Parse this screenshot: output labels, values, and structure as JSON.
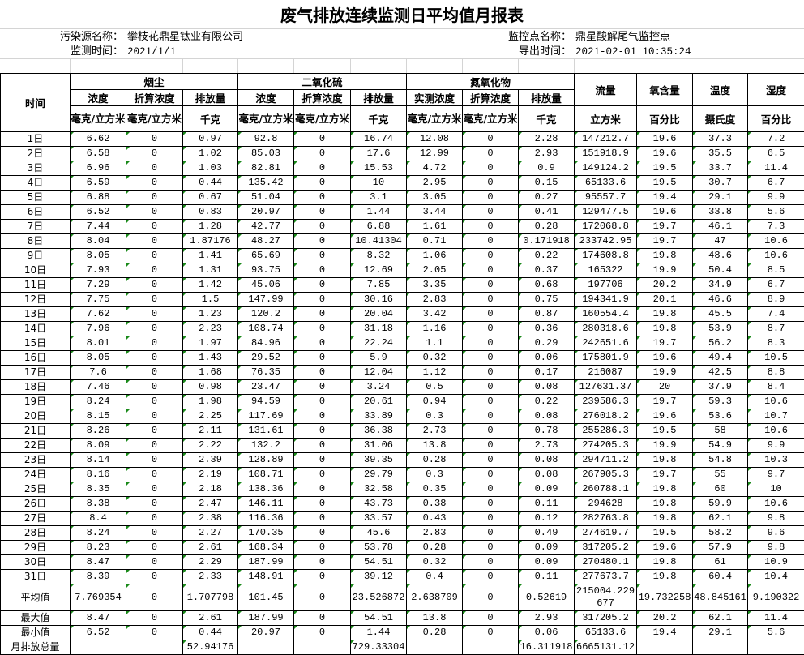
{
  "title": "废气排放连续监测日平均值月报表",
  "info": {
    "source_label": "污染源名称：",
    "source_value": "攀枝花鼎星钛业有限公司",
    "point_label": "监控点名称：",
    "point_value": "鼎星酸解尾气监控点",
    "time_label": "监测时间：",
    "time_value": "2021/1/1",
    "export_label": "导出时间：",
    "export_value": "2021-02-01 10:35:24"
  },
  "header": {
    "time": "时间",
    "groups": {
      "dust": "烟尘",
      "so2": "二氧化硫",
      "nox": "氮氧化物"
    },
    "flow": "流量",
    "oxygen": "氧含量",
    "temp": "温度",
    "humidity": "湿度",
    "sub": {
      "conc": "浓度",
      "conv": "折算浓度",
      "emis": "排放量",
      "measured": "实测浓度"
    },
    "units": {
      "mg": "毫克/立方米",
      "kg": "千克",
      "m3": "立方米",
      "pct": "百分比",
      "celsius": "摄氏度"
    }
  },
  "rows": [
    [
      "1日",
      "6.62",
      "0",
      "0.97",
      "92.8",
      "0",
      "16.74",
      "12.08",
      "0",
      "2.28",
      "147212.7",
      "19.6",
      "37.3",
      "7.2"
    ],
    [
      "2日",
      "6.58",
      "0",
      "1.02",
      "85.03",
      "0",
      "17.6",
      "12.99",
      "0",
      "2.93",
      "151918.9",
      "19.6",
      "35.5",
      "6.5"
    ],
    [
      "3日",
      "6.96",
      "0",
      "1.03",
      "82.81",
      "0",
      "15.53",
      "4.72",
      "0",
      "0.9",
      "149124.2",
      "19.5",
      "33.7",
      "11.4"
    ],
    [
      "4日",
      "6.59",
      "0",
      "0.44",
      "135.42",
      "0",
      "10",
      "2.95",
      "0",
      "0.15",
      "65133.6",
      "19.5",
      "30.7",
      "6.7"
    ],
    [
      "5日",
      "6.88",
      "0",
      "0.67",
      "51.04",
      "0",
      "3.1",
      "3.05",
      "0",
      "0.27",
      "95557.7",
      "19.4",
      "29.1",
      "9.9"
    ],
    [
      "6日",
      "6.52",
      "0",
      "0.83",
      "20.97",
      "0",
      "1.44",
      "3.44",
      "0",
      "0.41",
      "129477.5",
      "19.6",
      "33.8",
      "5.6"
    ],
    [
      "7日",
      "7.44",
      "0",
      "1.28",
      "42.77",
      "0",
      "6.88",
      "1.61",
      "0",
      "0.28",
      "172068.8",
      "19.7",
      "46.1",
      "7.3"
    ],
    [
      "8日",
      "8.04",
      "0",
      "1.87176",
      "48.27",
      "0",
      "10.41304",
      "0.71",
      "0",
      "0.171918",
      "233742.95",
      "19.7",
      "47",
      "10.6"
    ],
    [
      "9日",
      "8.05",
      "0",
      "1.41",
      "65.69",
      "0",
      "8.32",
      "1.06",
      "0",
      "0.22",
      "174608.8",
      "19.8",
      "48.6",
      "10.6"
    ],
    [
      "10日",
      "7.93",
      "0",
      "1.31",
      "93.75",
      "0",
      "12.69",
      "2.05",
      "0",
      "0.37",
      "165322",
      "19.9",
      "50.4",
      "8.5"
    ],
    [
      "11日",
      "7.29",
      "0",
      "1.42",
      "45.06",
      "0",
      "7.85",
      "3.35",
      "0",
      "0.68",
      "197706",
      "20.2",
      "34.9",
      "6.7"
    ],
    [
      "12日",
      "7.75",
      "0",
      "1.5",
      "147.99",
      "0",
      "30.16",
      "2.83",
      "0",
      "0.75",
      "194341.9",
      "20.1",
      "46.6",
      "8.9"
    ],
    [
      "13日",
      "7.62",
      "0",
      "1.23",
      "120.2",
      "0",
      "20.04",
      "3.42",
      "0",
      "0.87",
      "160554.4",
      "19.8",
      "45.5",
      "7.4"
    ],
    [
      "14日",
      "7.96",
      "0",
      "2.23",
      "108.74",
      "0",
      "31.18",
      "1.16",
      "0",
      "0.36",
      "280318.6",
      "19.8",
      "53.9",
      "8.7"
    ],
    [
      "15日",
      "8.01",
      "0",
      "1.97",
      "84.96",
      "0",
      "22.24",
      "1.1",
      "0",
      "0.29",
      "242651.6",
      "19.7",
      "56.2",
      "8.3"
    ],
    [
      "16日",
      "8.05",
      "0",
      "1.43",
      "29.52",
      "0",
      "5.9",
      "0.32",
      "0",
      "0.06",
      "175801.9",
      "19.6",
      "49.4",
      "10.5"
    ],
    [
      "17日",
      "7.6",
      "0",
      "1.68",
      "76.35",
      "0",
      "12.04",
      "1.12",
      "0",
      "0.17",
      "216087",
      "19.9",
      "42.5",
      "8.8"
    ],
    [
      "18日",
      "7.46",
      "0",
      "0.98",
      "23.47",
      "0",
      "3.24",
      "0.5",
      "0",
      "0.08",
      "127631.37",
      "20",
      "37.9",
      "8.4"
    ],
    [
      "19日",
      "8.24",
      "0",
      "1.98",
      "94.59",
      "0",
      "20.61",
      "0.94",
      "0",
      "0.22",
      "239586.3",
      "19.7",
      "59.3",
      "10.6"
    ],
    [
      "20日",
      "8.15",
      "0",
      "2.25",
      "117.69",
      "0",
      "33.89",
      "0.3",
      "0",
      "0.08",
      "276018.2",
      "19.6",
      "53.6",
      "10.7"
    ],
    [
      "21日",
      "8.26",
      "0",
      "2.11",
      "131.61",
      "0",
      "36.38",
      "2.73",
      "0",
      "0.78",
      "255286.3",
      "19.5",
      "58",
      "10.6"
    ],
    [
      "22日",
      "8.09",
      "0",
      "2.22",
      "132.2",
      "0",
      "31.06",
      "13.8",
      "0",
      "2.73",
      "274205.3",
      "19.9",
      "54.9",
      "9.9"
    ],
    [
      "23日",
      "8.14",
      "0",
      "2.39",
      "128.89",
      "0",
      "39.35",
      "0.28",
      "0",
      "0.08",
      "294711.2",
      "19.8",
      "54.8",
      "10.3"
    ],
    [
      "24日",
      "8.16",
      "0",
      "2.19",
      "108.71",
      "0",
      "29.79",
      "0.3",
      "0",
      "0.08",
      "267905.3",
      "19.7",
      "55",
      "9.7"
    ],
    [
      "25日",
      "8.35",
      "0",
      "2.18",
      "138.36",
      "0",
      "32.58",
      "0.35",
      "0",
      "0.09",
      "260788.1",
      "19.8",
      "60",
      "10"
    ],
    [
      "26日",
      "8.38",
      "0",
      "2.47",
      "146.11",
      "0",
      "43.73",
      "0.38",
      "0",
      "0.11",
      "294628",
      "19.8",
      "59.9",
      "10.6"
    ],
    [
      "27日",
      "8.4",
      "0",
      "2.38",
      "116.36",
      "0",
      "33.57",
      "0.43",
      "0",
      "0.12",
      "282763.8",
      "19.8",
      "62.1",
      "9.8"
    ],
    [
      "28日",
      "8.24",
      "0",
      "2.27",
      "170.35",
      "0",
      "45.6",
      "2.83",
      "0",
      "0.49",
      "274619.7",
      "19.5",
      "58.2",
      "9.6"
    ],
    [
      "29日",
      "8.23",
      "0",
      "2.61",
      "168.34",
      "0",
      "53.78",
      "0.28",
      "0",
      "0.09",
      "317205.2",
      "19.6",
      "57.9",
      "9.8"
    ],
    [
      "30日",
      "8.47",
      "0",
      "2.29",
      "187.99",
      "0",
      "54.51",
      "0.32",
      "0",
      "0.09",
      "270480.1",
      "19.8",
      "61",
      "10.9"
    ],
    [
      "31日",
      "8.39",
      "0",
      "2.33",
      "148.91",
      "0",
      "39.12",
      "0.4",
      "0",
      "0.11",
      "277673.7",
      "19.8",
      "60.4",
      "10.4"
    ]
  ],
  "summary": [
    [
      "平均值",
      "7.769354",
      "0",
      "1.707798",
      "101.45",
      "0",
      "23.526872",
      "2.638709",
      "0",
      "0.52619",
      "215004.229677",
      "19.732258",
      "48.845161",
      "9.190322"
    ],
    [
      "最大值",
      "8.47",
      "0",
      "2.61",
      "187.99",
      "0",
      "54.51",
      "13.8",
      "0",
      "2.93",
      "317205.2",
      "20.2",
      "62.1",
      "11.4"
    ],
    [
      "最小值",
      "6.52",
      "0",
      "0.44",
      "20.97",
      "0",
      "1.44",
      "0.28",
      "0",
      "0.06",
      "65133.6",
      "19.4",
      "29.1",
      "5.6"
    ],
    [
      "月排放总量",
      "",
      "",
      "52.94176",
      "",
      "",
      "729.33304",
      "",
      "",
      "16.311918",
      "6665131.12",
      "",
      "",
      ""
    ]
  ],
  "colors": {
    "grid": "#000000",
    "light_grid": "#d4d4d4",
    "indicator": "#1a8a1a"
  }
}
